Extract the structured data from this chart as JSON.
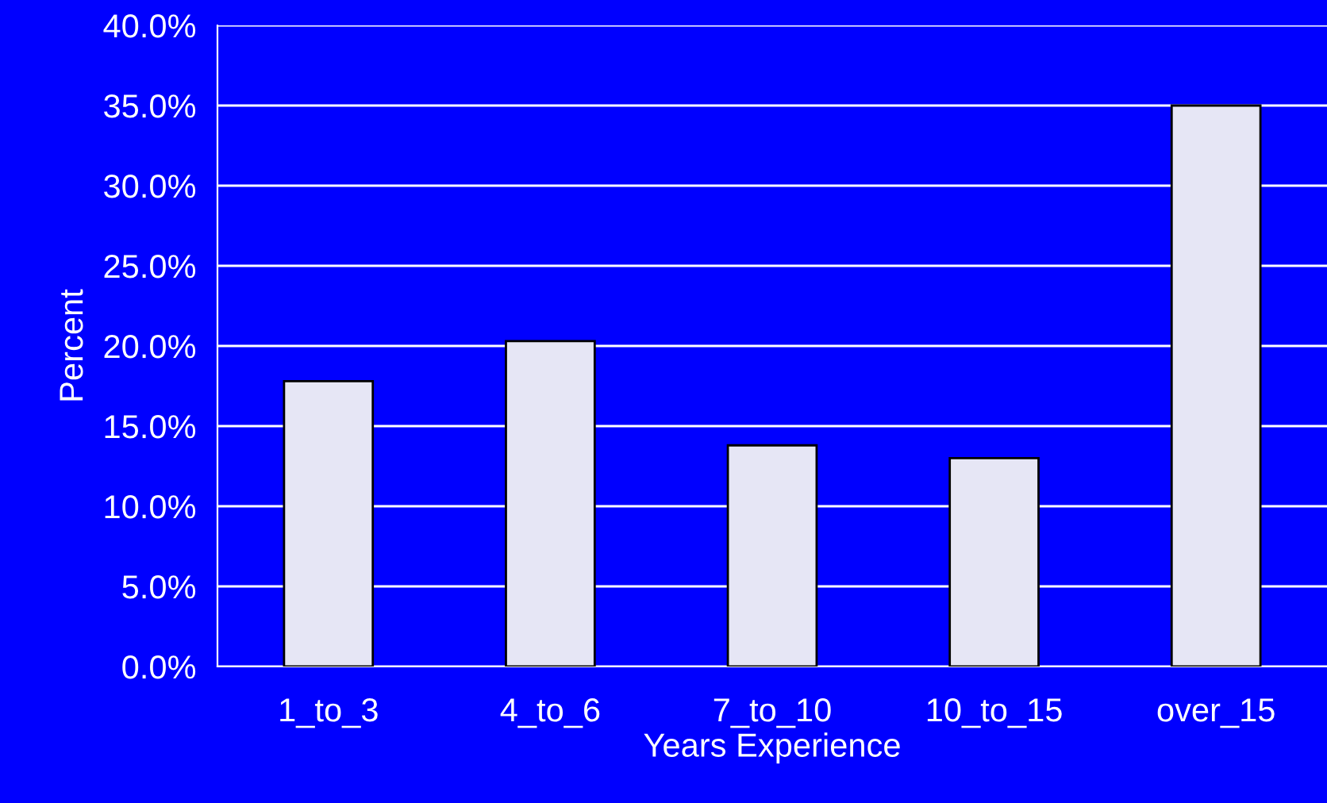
{
  "chart_data": {
    "type": "bar",
    "xlabel": "Years Experience",
    "ylabel": "Percent",
    "categories": [
      "1_to_3",
      "4_to_6",
      "7_to_10",
      "10_to_15",
      "over_15"
    ],
    "values": [
      17.8,
      20.3,
      13.8,
      13.0,
      35.0
    ],
    "color": "#e6e6f5",
    "ylim": [
      0,
      40
    ],
    "yticks": [
      {
        "value": 0,
        "label": "0.0%"
      },
      {
        "value": 5,
        "label": "5.0%"
      },
      {
        "value": 10,
        "label": "10.0%"
      },
      {
        "value": 15,
        "label": "15.0%"
      },
      {
        "value": 20,
        "label": "20.0%"
      },
      {
        "value": 25,
        "label": "25.0%"
      },
      {
        "value": 30,
        "label": "30.0%"
      },
      {
        "value": 35,
        "label": "35.0%"
      },
      {
        "value": 40,
        "label": "40.0%"
      }
    ],
    "grid": "y",
    "legend": false
  }
}
